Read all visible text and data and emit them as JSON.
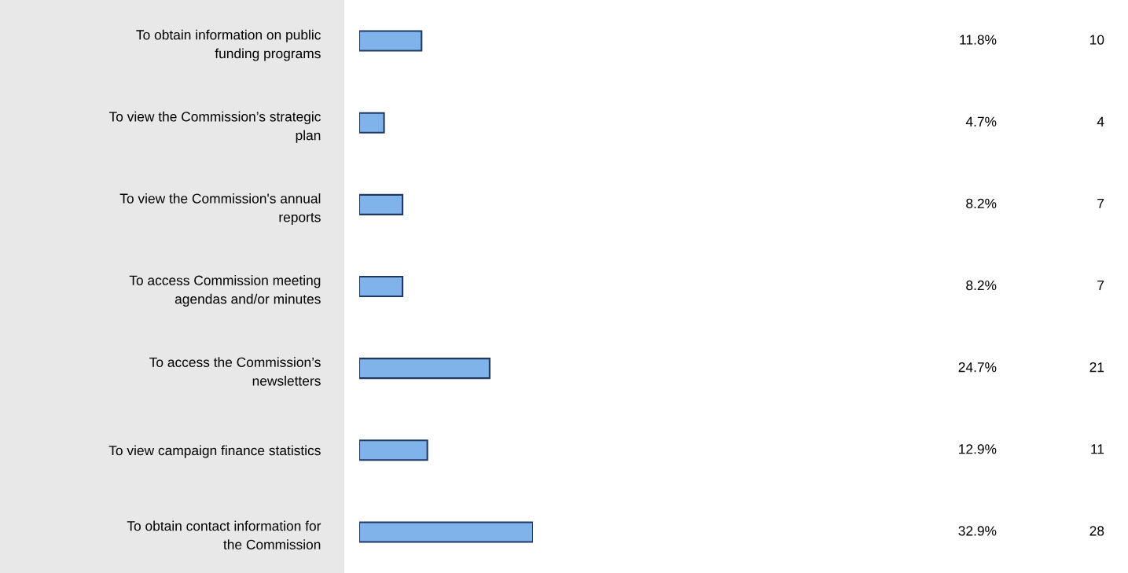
{
  "chart_data": {
    "type": "bar",
    "orientation": "horizontal",
    "categories": [
      "To obtain information on public\nfunding programs",
      "To view the Commission’s strategic\nplan",
      "To view the Commission's annual\nreports",
      "To access Commission meeting\nagendas and/or minutes",
      "To access the Commission’s\nnewsletters",
      "To view campaign finance statistics",
      "To obtain contact information for\nthe Commission"
    ],
    "values": [
      11.8,
      4.7,
      8.2,
      8.2,
      24.7,
      12.9,
      32.9
    ],
    "value_labels": [
      "11.8%",
      "4.7%",
      "8.2%",
      "8.2%",
      "24.7%",
      "12.9%",
      "32.9%"
    ],
    "color": "#7fb3ea",
    "tick_labels": "y",
    "annotations": [
      "10",
      "4",
      "7",
      "7",
      "21",
      "11",
      "28"
    ]
  }
}
